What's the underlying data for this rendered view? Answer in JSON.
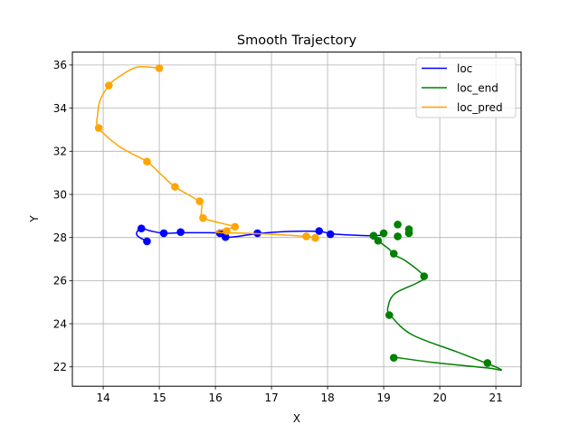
{
  "chart_data": {
    "type": "line",
    "title": "Smooth Trajectory",
    "xlabel": "X",
    "ylabel": "Y",
    "xlim": [
      13.45,
      21.45
    ],
    "ylim": [
      21.1,
      36.6
    ],
    "xticks": [
      14,
      15,
      16,
      17,
      18,
      19,
      20,
      21
    ],
    "yticks": [
      22,
      24,
      26,
      28,
      30,
      32,
      34,
      36
    ],
    "grid": true,
    "legend_position": "top-right",
    "series": [
      {
        "name": "loc",
        "color": "#0000ff",
        "curve": [
          [
            14.78,
            27.82
          ],
          [
            14.62,
            28.05
          ],
          [
            14.6,
            28.25
          ],
          [
            14.68,
            28.42
          ],
          [
            14.85,
            28.3
          ],
          [
            15.08,
            28.2
          ],
          [
            15.38,
            28.22
          ],
          [
            15.7,
            28.22
          ],
          [
            16.08,
            28.2
          ],
          [
            16.18,
            28.02
          ],
          [
            16.4,
            28.05
          ],
          [
            16.75,
            28.18
          ],
          [
            17.3,
            28.28
          ],
          [
            17.85,
            28.28
          ],
          [
            18.05,
            28.18
          ],
          [
            18.35,
            28.12
          ],
          [
            18.82,
            28.08
          ],
          [
            19.0,
            28.12
          ]
        ],
        "points": [
          [
            14.78,
            27.82
          ],
          [
            14.68,
            28.42
          ],
          [
            15.08,
            28.2
          ],
          [
            15.38,
            28.25
          ],
          [
            16.08,
            28.2
          ],
          [
            16.18,
            28.02
          ],
          [
            16.75,
            28.2
          ],
          [
            17.85,
            28.3
          ],
          [
            18.05,
            28.15
          ],
          [
            18.82,
            28.08
          ]
        ]
      },
      {
        "name": "loc_end",
        "color": "#008000",
        "curve": [
          [
            18.82,
            28.08
          ],
          [
            18.9,
            27.85
          ],
          [
            19.1,
            27.45
          ],
          [
            19.18,
            27.2
          ],
          [
            19.4,
            26.9
          ],
          [
            19.72,
            26.2
          ],
          [
            19.6,
            25.9
          ],
          [
            19.2,
            25.4
          ],
          [
            19.08,
            24.8
          ],
          [
            19.12,
            24.4
          ],
          [
            19.5,
            23.5
          ],
          [
            20.3,
            22.7
          ],
          [
            20.9,
            22.1
          ],
          [
            21.1,
            21.85
          ],
          [
            20.85,
            21.95
          ],
          [
            19.9,
            22.2
          ],
          [
            19.18,
            22.45
          ]
        ],
        "points": [
          [
            18.82,
            28.08
          ],
          [
            18.9,
            27.85
          ],
          [
            19.18,
            27.25
          ],
          [
            19.72,
            26.2
          ],
          [
            19.1,
            24.4
          ],
          [
            20.85,
            22.18
          ],
          [
            19.18,
            22.42
          ],
          [
            19.25,
            28.05
          ],
          [
            19.45,
            28.2
          ],
          [
            19.45,
            28.38
          ],
          [
            19.25,
            28.6
          ],
          [
            19.0,
            28.2
          ]
        ]
      },
      {
        "name": "loc_pred",
        "color": "#ffa500",
        "curve": [
          [
            15.0,
            35.85
          ],
          [
            14.6,
            35.9
          ],
          [
            14.25,
            35.4
          ],
          [
            14.1,
            35.05
          ],
          [
            13.95,
            34.4
          ],
          [
            13.9,
            33.7
          ],
          [
            13.92,
            33.08
          ],
          [
            14.3,
            32.2
          ],
          [
            14.78,
            31.52
          ],
          [
            15.0,
            31.0
          ],
          [
            15.28,
            30.35
          ],
          [
            15.72,
            29.65
          ],
          [
            15.75,
            29.2
          ],
          [
            15.78,
            28.9
          ],
          [
            16.2,
            28.6
          ],
          [
            16.35,
            28.5
          ],
          [
            16.0,
            28.25
          ],
          [
            16.5,
            28.2
          ],
          [
            17.0,
            28.15
          ],
          [
            17.62,
            28.05
          ],
          [
            17.78,
            27.98
          ]
        ],
        "points": [
          [
            15.0,
            35.85
          ],
          [
            14.1,
            35.05
          ],
          [
            13.92,
            33.08
          ],
          [
            14.78,
            31.52
          ],
          [
            15.28,
            30.35
          ],
          [
            15.72,
            29.68
          ],
          [
            15.78,
            28.9
          ],
          [
            16.35,
            28.5
          ],
          [
            16.2,
            28.3
          ],
          [
            17.62,
            28.05
          ],
          [
            17.78,
            27.98
          ]
        ]
      }
    ]
  }
}
